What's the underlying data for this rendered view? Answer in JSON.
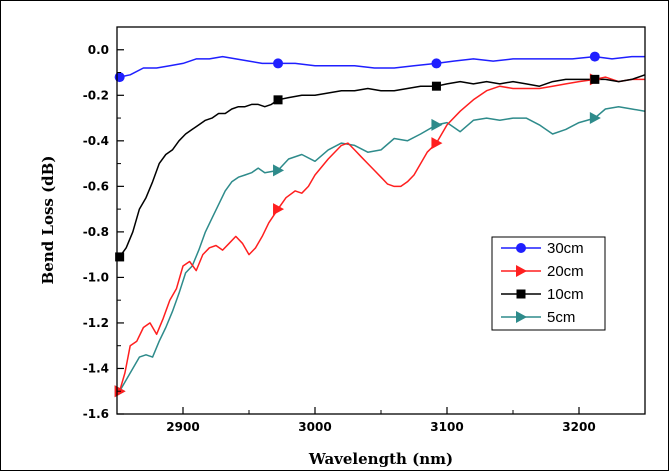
{
  "chart_data": {
    "type": "line",
    "title": "",
    "xlabel": "Wavelength (nm)",
    "ylabel": "Bend Loss (dB)",
    "xlim": [
      2850,
      3250
    ],
    "ylim": [
      -1.6,
      0.1
    ],
    "x_ticks": [
      2900,
      3000,
      3100,
      3200
    ],
    "x_tick_labels": [
      "2900",
      "3000",
      "3100",
      "3200"
    ],
    "y_ticks": [
      0.0,
      -0.2,
      -0.4,
      -0.6,
      -0.8,
      -1.0,
      -1.2,
      -1.4,
      -1.6
    ],
    "y_tick_labels": [
      "0.0",
      "-0.2",
      "-0.4",
      "-0.6",
      "-0.8",
      "-1.0",
      "-1.2",
      "-1.4",
      "-1.6"
    ],
    "grid": false,
    "legend_position": "center-right",
    "series": [
      {
        "name": "30cm",
        "color": "#1f1fff",
        "marker": "circle",
        "marker_x": [
          2852,
          2972,
          3092,
          3212
        ],
        "x": [
          2852,
          2860,
          2870,
          2880,
          2890,
          2900,
          2910,
          2920,
          2930,
          2940,
          2950,
          2960,
          2972,
          2985,
          3000,
          3015,
          3030,
          3045,
          3060,
          3075,
          3092,
          3105,
          3120,
          3135,
          3150,
          3165,
          3180,
          3195,
          3212,
          3225,
          3240,
          3250
        ],
        "y": [
          -0.12,
          -0.11,
          -0.08,
          -0.08,
          -0.07,
          -0.06,
          -0.04,
          -0.04,
          -0.03,
          -0.04,
          -0.05,
          -0.06,
          -0.06,
          -0.06,
          -0.07,
          -0.07,
          -0.07,
          -0.08,
          -0.08,
          -0.07,
          -0.06,
          -0.05,
          -0.04,
          -0.05,
          -0.04,
          -0.04,
          -0.04,
          -0.04,
          -0.03,
          -0.04,
          -0.03,
          -0.03
        ]
      },
      {
        "name": "20cm",
        "color": "#ff1f1f",
        "marker": "triangle-right",
        "marker_x": [
          2852,
          2972,
          3092,
          3212
        ],
        "x": [
          2852,
          2856,
          2860,
          2865,
          2870,
          2875,
          2880,
          2885,
          2890,
          2895,
          2900,
          2905,
          2910,
          2915,
          2920,
          2925,
          2930,
          2935,
          2940,
          2945,
          2950,
          2955,
          2960,
          2965,
          2972,
          2978,
          2985,
          2990,
          2995,
          3000,
          3010,
          3020,
          3025,
          3030,
          3035,
          3040,
          3045,
          3050,
          3055,
          3060,
          3065,
          3070,
          3075,
          3080,
          3085,
          3092,
          3100,
          3110,
          3120,
          3130,
          3140,
          3150,
          3160,
          3170,
          3180,
          3190,
          3200,
          3212,
          3220,
          3230,
          3240,
          3250
        ],
        "y": [
          -1.5,
          -1.42,
          -1.3,
          -1.28,
          -1.22,
          -1.2,
          -1.25,
          -1.18,
          -1.1,
          -1.05,
          -0.95,
          -0.93,
          -0.97,
          -0.9,
          -0.87,
          -0.86,
          -0.88,
          -0.85,
          -0.82,
          -0.85,
          -0.9,
          -0.87,
          -0.82,
          -0.76,
          -0.7,
          -0.65,
          -0.62,
          -0.63,
          -0.6,
          -0.55,
          -0.48,
          -0.42,
          -0.41,
          -0.44,
          -0.47,
          -0.5,
          -0.53,
          -0.56,
          -0.59,
          -0.6,
          -0.6,
          -0.58,
          -0.55,
          -0.5,
          -0.45,
          -0.41,
          -0.33,
          -0.27,
          -0.22,
          -0.18,
          -0.16,
          -0.17,
          -0.17,
          -0.17,
          -0.16,
          -0.15,
          -0.14,
          -0.13,
          -0.12,
          -0.14,
          -0.13,
          -0.13
        ]
      },
      {
        "name": "10cm",
        "color": "#000000",
        "marker": "square",
        "marker_x": [
          2852,
          2972,
          3092,
          3212
        ],
        "x": [
          2852,
          2857,
          2862,
          2867,
          2872,
          2877,
          2882,
          2887,
          2892,
          2897,
          2902,
          2907,
          2912,
          2917,
          2922,
          2927,
          2932,
          2937,
          2942,
          2947,
          2952,
          2957,
          2962,
          2967,
          2972,
          2980,
          2990,
          3000,
          3010,
          3020,
          3030,
          3040,
          3050,
          3060,
          3070,
          3080,
          3092,
          3100,
          3110,
          3120,
          3130,
          3140,
          3150,
          3160,
          3170,
          3180,
          3190,
          3200,
          3212,
          3220,
          3230,
          3240,
          3250
        ],
        "y": [
          -0.91,
          -0.87,
          -0.8,
          -0.7,
          -0.65,
          -0.58,
          -0.5,
          -0.46,
          -0.44,
          -0.4,
          -0.37,
          -0.35,
          -0.33,
          -0.31,
          -0.3,
          -0.28,
          -0.28,
          -0.26,
          -0.25,
          -0.25,
          -0.24,
          -0.24,
          -0.25,
          -0.24,
          -0.22,
          -0.21,
          -0.2,
          -0.2,
          -0.19,
          -0.18,
          -0.18,
          -0.17,
          -0.18,
          -0.18,
          -0.17,
          -0.16,
          -0.16,
          -0.15,
          -0.14,
          -0.15,
          -0.14,
          -0.15,
          -0.14,
          -0.15,
          -0.16,
          -0.14,
          -0.13,
          -0.13,
          -0.13,
          -0.13,
          -0.14,
          -0.13,
          -0.11
        ]
      },
      {
        "name": "5cm",
        "color": "#2e8b8b",
        "marker": "triangle-right",
        "marker_x": [
          2852,
          2972,
          3092,
          3212
        ],
        "x": [
          2852,
          2857,
          2862,
          2867,
          2872,
          2877,
          2882,
          2887,
          2892,
          2897,
          2902,
          2907,
          2912,
          2917,
          2922,
          2927,
          2932,
          2937,
          2942,
          2947,
          2952,
          2957,
          2962,
          2972,
          2980,
          2990,
          3000,
          3010,
          3020,
          3030,
          3040,
          3050,
          3060,
          3070,
          3080,
          3092,
          3100,
          3110,
          3120,
          3130,
          3140,
          3150,
          3160,
          3170,
          3180,
          3190,
          3200,
          3212,
          3220,
          3230,
          3240,
          3250
        ],
        "y": [
          -1.5,
          -1.45,
          -1.4,
          -1.35,
          -1.34,
          -1.35,
          -1.28,
          -1.22,
          -1.15,
          -1.07,
          -0.98,
          -0.95,
          -0.88,
          -0.8,
          -0.74,
          -0.68,
          -0.62,
          -0.58,
          -0.56,
          -0.55,
          -0.54,
          -0.52,
          -0.54,
          -0.53,
          -0.48,
          -0.46,
          -0.49,
          -0.44,
          -0.41,
          -0.42,
          -0.45,
          -0.44,
          -0.39,
          -0.4,
          -0.37,
          -0.33,
          -0.32,
          -0.36,
          -0.31,
          -0.3,
          -0.31,
          -0.3,
          -0.3,
          -0.33,
          -0.37,
          -0.35,
          -0.32,
          -0.3,
          -0.26,
          -0.25,
          -0.26,
          -0.27
        ]
      }
    ]
  }
}
